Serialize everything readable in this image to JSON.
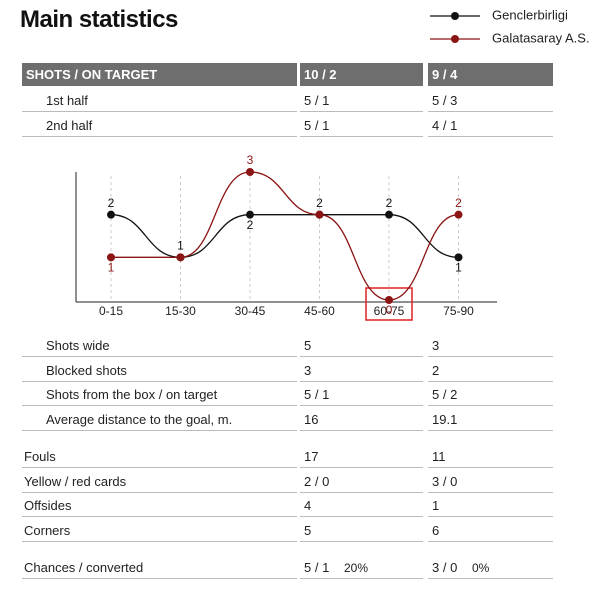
{
  "title": "Main statistics",
  "shots_table": {
    "header": [
      "SHOTS / ON TARGET",
      "10 / 2",
      "9 / 4"
    ],
    "rows": [
      [
        "1st half",
        "5 / 1",
        "5 / 3"
      ],
      [
        "2nd half",
        "5 / 1",
        "4 / 1"
      ]
    ]
  },
  "chart_data": {
    "type": "line",
    "categories": [
      "0-15",
      "15-30",
      "30-45",
      "45-60",
      "60-75",
      "75-90"
    ],
    "series": [
      {
        "name": "Genclerbirligi",
        "color": "#111111",
        "values": [
          2,
          1,
          2,
          2,
          2,
          1
        ]
      },
      {
        "name": "Galatasaray A.S.",
        "color": "#8b1414",
        "values": [
          1,
          1,
          3,
          2,
          0,
          2
        ]
      }
    ],
    "ylim": [
      0,
      3
    ],
    "grid": true,
    "highlight_index": 4,
    "highlight_color": "#e02020"
  },
  "stats_groups": [
    {
      "indent": true,
      "rows": [
        [
          "Shots wide",
          "5",
          "3"
        ],
        [
          "Blocked shots",
          "3",
          "2"
        ],
        [
          "Shots from the box / on target",
          "5 / 1",
          "5 / 2"
        ],
        [
          "Average distance to the goal, m.",
          "16",
          "19.1"
        ]
      ]
    },
    {
      "indent": false,
      "rows": [
        [
          "Fouls",
          "17",
          "11"
        ],
        [
          "Yellow / red cards",
          "2 / 0",
          "3 / 0"
        ],
        [
          "Offsides",
          "4",
          "1"
        ],
        [
          "Corners",
          "5",
          "6"
        ]
      ]
    },
    {
      "indent": false,
      "rows": [
        [
          "Chances / converted",
          [
            "5 / 1",
            "20%"
          ],
          [
            "3 / 0",
            "0%"
          ]
        ]
      ]
    }
  ]
}
